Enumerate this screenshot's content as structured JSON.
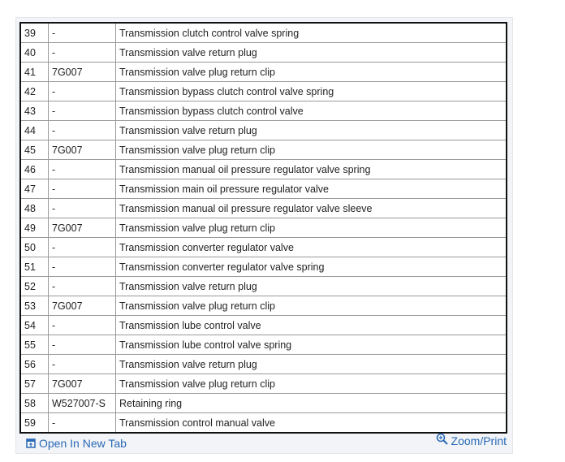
{
  "table": {
    "rows": [
      [
        "39",
        "-",
        "Transmission clutch control valve spring"
      ],
      [
        "40",
        "-",
        "Transmission valve return plug"
      ],
      [
        "41",
        "7G007",
        "Transmission valve plug return clip"
      ],
      [
        "42",
        "-",
        "Transmission bypass clutch control valve spring"
      ],
      [
        "43",
        "-",
        "Transmission bypass clutch control valve"
      ],
      [
        "44",
        "-",
        "Transmission valve return plug"
      ],
      [
        "45",
        "7G007",
        "Transmission valve plug return clip"
      ],
      [
        "46",
        "-",
        "Transmission manual oil pressure regulator valve spring"
      ],
      [
        "47",
        "-",
        "Transmission main oil pressure regulator valve"
      ],
      [
        "48",
        "-",
        "Transmission manual oil pressure regulator valve sleeve"
      ],
      [
        "49",
        "7G007",
        "Transmission valve plug return clip"
      ],
      [
        "50",
        "-",
        "Transmission converter regulator valve"
      ],
      [
        "51",
        "-",
        "Transmission converter regulator valve spring"
      ],
      [
        "52",
        "-",
        "Transmission valve return plug"
      ],
      [
        "53",
        "7G007",
        "Transmission valve plug return clip"
      ],
      [
        "54",
        "-",
        "Transmission lube control valve"
      ],
      [
        "55",
        "-",
        "Transmission lube control valve spring"
      ],
      [
        "56",
        "-",
        "Transmission valve return plug"
      ],
      [
        "57",
        "7G007",
        "Transmission valve plug return clip"
      ],
      [
        "58",
        "W527007-S",
        "Retaining ring"
      ],
      [
        "59",
        "-",
        "Transmission control manual valve"
      ]
    ]
  },
  "footer": {
    "open_label": "Open In New Tab",
    "open_icon": "open-new-tab-icon",
    "zoom_label": "Zoom/Print",
    "zoom_icon": "zoom-in-icon",
    "link_color": "#2a6ab7"
  }
}
